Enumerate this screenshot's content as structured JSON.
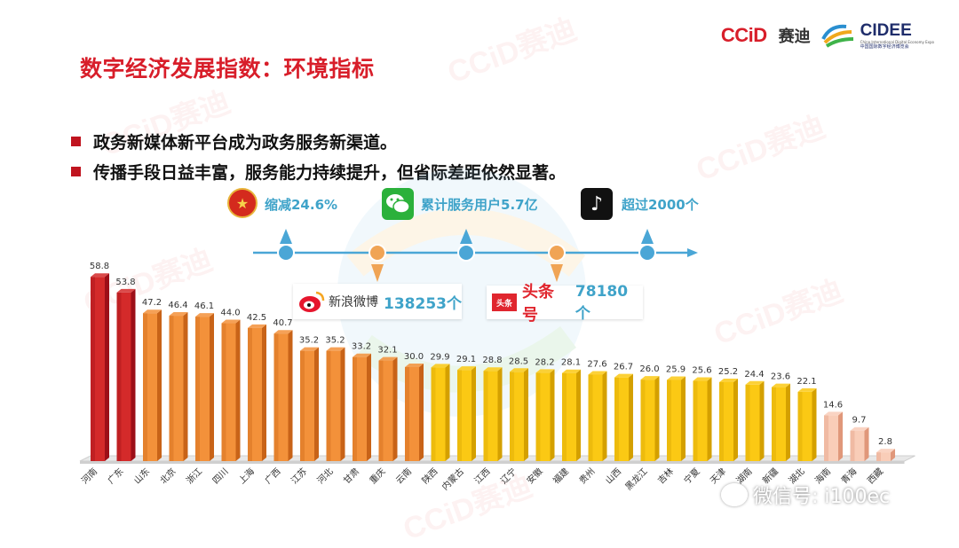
{
  "brand": {
    "ccid_logo": "CCiD",
    "ccid_cn": "赛迪",
    "cidee_title": "CIDEE",
    "cidee_sub1": "China International Digital Economy Expo",
    "cidee_sub2": "中国国际数字经济博览会"
  },
  "page_title": "数字经济发展指数：环境指标",
  "bullets": [
    "政务新媒体新平台成为政务服务新渠道。",
    "传播手段日益丰富，服务能力持续提升，但省际差距依然显著。"
  ],
  "timeline": {
    "top_labels": [
      "缩减24.6%",
      "累计服务用户5.7亿",
      "超过2000个"
    ],
    "weibo": {
      "name": "新浪微博",
      "value": "138253个"
    },
    "toutiao": {
      "icon_text": "头条",
      "name": "头条号",
      "value": "78180个"
    },
    "tiktok_glyph": "♪"
  },
  "watermark": {
    "text": "CCiD赛迪",
    "wechat": "微信号: i100ec"
  },
  "colors": {
    "title_red": "#d81e2a",
    "accent_blue": "#3fa3c9",
    "bar_red": "#c0141f",
    "bar_orange": "#ef8a2c",
    "bar_yellow": "#f8c100",
    "bar_peach": "#f6b99b"
  },
  "chart_data": {
    "type": "bar",
    "categories": [
      "河南",
      "广东",
      "山东",
      "北京",
      "浙江",
      "四川",
      "上海",
      "广西",
      "江苏",
      "河北",
      "甘肃",
      "重庆",
      "云南",
      "陕西",
      "内蒙古",
      "江西",
      "辽宁",
      "安徽",
      "福建",
      "贵州",
      "山西",
      "黑龙江",
      "吉林",
      "宁夏",
      "天津",
      "湖南",
      "新疆",
      "湖北",
      "海南",
      "青海",
      "西藏"
    ],
    "values": [
      58.8,
      53.8,
      47.2,
      46.4,
      46.1,
      44.0,
      42.5,
      40.7,
      35.2,
      35.2,
      33.2,
      32.1,
      30.0,
      29.9,
      29.1,
      28.8,
      28.5,
      28.2,
      28.1,
      27.6,
      26.7,
      26.0,
      25.9,
      25.6,
      25.2,
      24.4,
      23.6,
      22.1,
      14.6,
      9.7,
      2.8
    ],
    "value_labels": [
      "58.8",
      "53.8",
      "47.2",
      "46.4",
      "46.1",
      "44.0",
      "42.5",
      "40.7",
      "35.2",
      "35.2",
      "33.2",
      "32.1",
      "30.0",
      "29.9",
      "29.1",
      "28.8",
      "28.5",
      "28.2",
      "28.1",
      "27.6",
      "26.7",
      "26.0",
      "25.9",
      "25.6",
      "25.2",
      "24.4",
      "23.6",
      "22.1",
      "14.6",
      "9.7",
      "2.8"
    ],
    "tiers": [
      "red",
      "red",
      "orange",
      "orange",
      "orange",
      "orange",
      "orange",
      "orange",
      "orange",
      "orange",
      "orange",
      "orange",
      "orange",
      "yellow",
      "yellow",
      "yellow",
      "yellow",
      "yellow",
      "yellow",
      "yellow",
      "yellow",
      "yellow",
      "yellow",
      "yellow",
      "yellow",
      "yellow",
      "yellow",
      "yellow",
      "peach",
      "peach",
      "peach"
    ],
    "ylim": [
      0,
      60
    ]
  }
}
